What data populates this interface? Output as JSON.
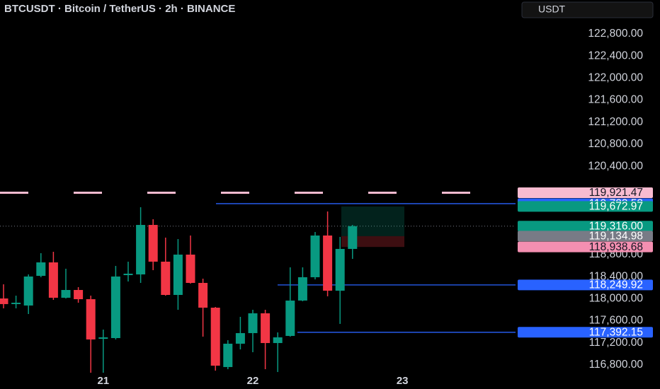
{
  "header": {
    "symbol": "BTCUSDT · Bitcoin / TetherUS · 2h · BINANCE",
    "currency": "USDT"
  },
  "chart_data": {
    "type": "candlestick",
    "categories": [
      null,
      null,
      null,
      null,
      null,
      null,
      null,
      null,
      "21",
      null,
      null,
      null,
      null,
      null,
      null,
      null,
      null,
      null,
      null,
      null,
      "22",
      null,
      null,
      null,
      null,
      null,
      null,
      null,
      null,
      null,
      null,
      null,
      "23"
    ],
    "open": [
      118005,
      117903,
      117877,
      118415,
      118659,
      118018,
      118159,
      117992,
      117274,
      117287,
      118428,
      118441,
      119338,
      118672,
      118069,
      118800,
      118287,
      117838,
      116762,
      117185,
      117377,
      117736,
      117197,
      117326,
      117967,
      118390,
      119146,
      118146,
      118903,
      null,
      null,
      null,
      null
    ],
    "high": [
      118262,
      118056,
      118441,
      118826,
      118851,
      118544,
      118210,
      118056,
      117441,
      118595,
      118672,
      119659,
      119441,
      119108,
      119082,
      119146,
      118364,
      117851,
      117249,
      117672,
      117800,
      117800,
      117390,
      118569,
      118569,
      119210,
      119582,
      119121,
      119338,
      null,
      null,
      null,
      null
    ],
    "low": [
      117826,
      117826,
      117723,
      118390,
      117979,
      118005,
      117928,
      116659,
      116659,
      117262,
      118313,
      118287,
      118518,
      118056,
      117800,
      118274,
      117313,
      116697,
      116723,
      117082,
      117031,
      116723,
      116672,
      117313,
      117954,
      118351,
      118044,
      117544,
      118723,
      null,
      null,
      null,
      null
    ],
    "close": [
      117903,
      117928,
      118403,
      118659,
      118018,
      118159,
      117992,
      117262,
      117300,
      118403,
      118454,
      119338,
      118672,
      118069,
      118800,
      118287,
      117838,
      116787,
      117185,
      117377,
      117736,
      117197,
      117300,
      117967,
      118390,
      119146,
      118146,
      118903,
      119316,
      null,
      null,
      null,
      null
    ],
    "up_color": "#089981",
    "down_color": "#f23645",
    "ylim": [
      116364,
      123415
    ],
    "yticks": [
      {
        "value": 116800,
        "label": "116,800.00"
      },
      {
        "value": 117200,
        "label": "117,200.00"
      },
      {
        "value": 117600,
        "label": "117,600.00"
      },
      {
        "value": 118000,
        "label": "118,000.00"
      },
      {
        "value": 118400,
        "label": "118,400.00"
      },
      {
        "value": 118800,
        "label": "118,800.00"
      },
      {
        "value": 120400,
        "label": "120,400.00"
      },
      {
        "value": 120800,
        "label": "120,800.00"
      },
      {
        "value": 121200,
        "label": "121,200.00"
      },
      {
        "value": 121600,
        "label": "121,600.00"
      },
      {
        "value": 122000,
        "label": "122,000.00"
      },
      {
        "value": 122400,
        "label": "122,400.00"
      },
      {
        "value": 122800,
        "label": "122,800.00"
      }
    ],
    "price_levels": {
      "values": [
        119921.47,
        119723.52,
        119672.97,
        119316.0,
        119134.98,
        118938.68,
        118249.92,
        117392.15
      ],
      "value_labels": [
        "119,921.47",
        "119,723.52",
        "119,672.97",
        "119,316.00",
        "119,134.98",
        "118,938.68",
        "118,249.92",
        "117,392.15"
      ],
      "colors": [
        "#f8bbd0",
        "#2962ff",
        "#089981",
        "#089981",
        "#787b86",
        "#f48fb1",
        "#2962ff",
        "#2962ff"
      ]
    }
  }
}
